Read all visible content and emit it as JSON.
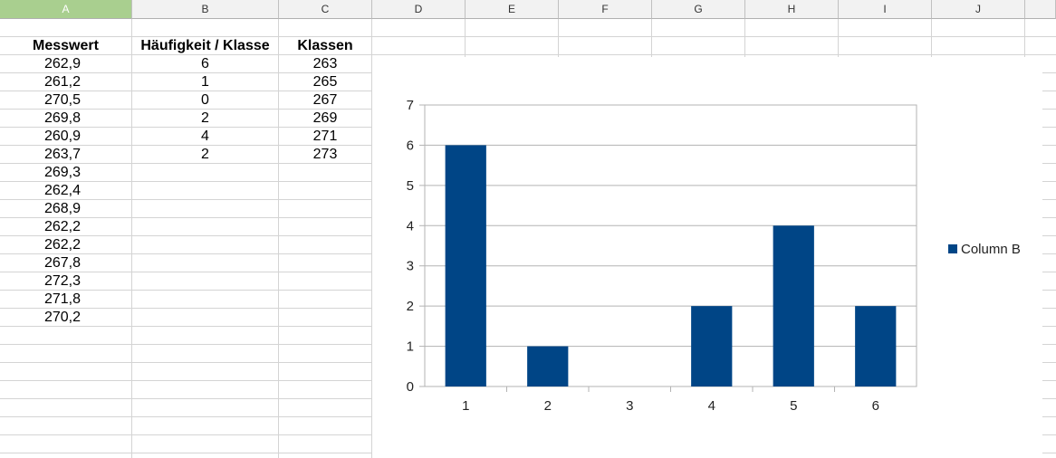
{
  "columns": [
    "A",
    "B",
    "C",
    "D",
    "E",
    "F",
    "G",
    "H",
    "I",
    "J"
  ],
  "selected_column": "A",
  "headers": {
    "a": "Messwert",
    "b": "Häufigkeit / Klasse",
    "c": "Klassen"
  },
  "col_a": [
    "262,9",
    "261,2",
    "270,5",
    "269,8",
    "260,9",
    "263,7",
    "269,3",
    "262,4",
    "268,9",
    "262,2",
    "262,2",
    "267,8",
    "272,3",
    "271,8",
    "270,2"
  ],
  "col_b": [
    "6",
    "1",
    "0",
    "2",
    "4",
    "2"
  ],
  "col_c": [
    "263",
    "265",
    "267",
    "269",
    "271",
    "273"
  ],
  "chart_data": {
    "type": "bar",
    "categories": [
      "1",
      "2",
      "3",
      "4",
      "5",
      "6"
    ],
    "series": [
      {
        "name": "Column B",
        "values": [
          6,
          1,
          0,
          2,
          4,
          2
        ]
      }
    ],
    "ylim": [
      0,
      7
    ],
    "yticks": [
      "0",
      "1",
      "2",
      "3",
      "4",
      "5",
      "6",
      "7"
    ],
    "grid": true,
    "legend": "right",
    "bar_color": "#004586",
    "grid_color": "#b3b3b3"
  }
}
